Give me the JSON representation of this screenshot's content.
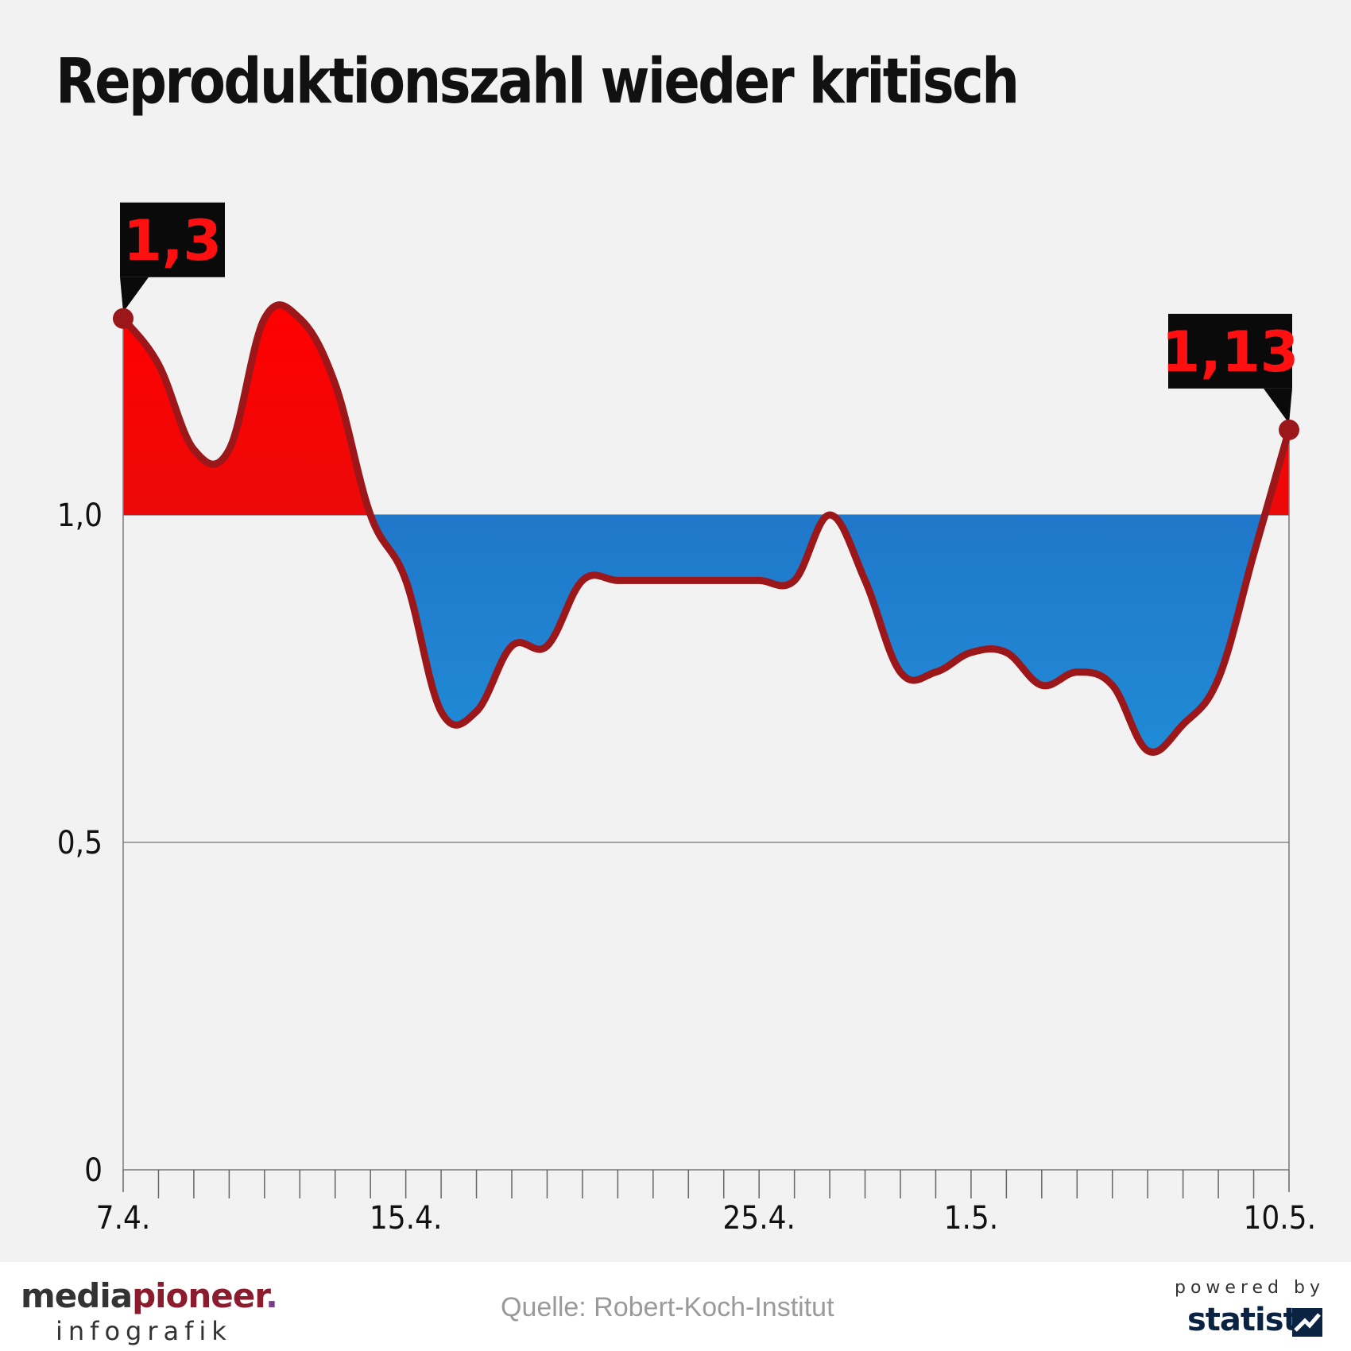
{
  "chart_data": {
    "type": "area",
    "title": "Reproduktionszahl wieder kritisch",
    "baseline": 1.0,
    "ylim": [
      0,
      1.5
    ],
    "yticks": [
      0,
      0.5,
      1.0
    ],
    "ytick_labels": [
      "0",
      "0,5",
      "1,0"
    ],
    "x_tick_labels": [
      {
        "date": "7.4.",
        "label": "7.4."
      },
      {
        "date": "15.4.",
        "label": "15.4."
      },
      {
        "date": "25.4.",
        "label": "25.4."
      },
      {
        "date": "1.5.",
        "label": "1.5."
      },
      {
        "date": "10.5.",
        "label": "10.5."
      }
    ],
    "x": [
      "7.4.",
      "8.4.",
      "9.4.",
      "10.4.",
      "11.4.",
      "12.4.",
      "13.4.",
      "14.4.",
      "15.4.",
      "16.4.",
      "17.4.",
      "18.4.",
      "19.4.",
      "20.4.",
      "21.4.",
      "22.4.",
      "23.4.",
      "24.4.",
      "25.4.",
      "26.4.",
      "27.4.",
      "28.4.",
      "29.4.",
      "30.4.",
      "1.5.",
      "2.5.",
      "3.5.",
      "4.5.",
      "5.5.",
      "6.5.",
      "7.5.",
      "8.5.",
      "9.5.",
      "10.5."
    ],
    "values": [
      1.3,
      1.23,
      1.1,
      1.1,
      1.3,
      1.3,
      1.2,
      1.0,
      0.9,
      0.7,
      0.7,
      0.8,
      0.8,
      0.9,
      0.9,
      0.9,
      0.9,
      0.9,
      0.9,
      0.9,
      1.0,
      0.9,
      0.76,
      0.76,
      0.79,
      0.79,
      0.74,
      0.76,
      0.74,
      0.64,
      0.68,
      0.75,
      0.94,
      1.13
    ],
    "callouts": [
      {
        "date": "7.4.",
        "label": "1,3"
      },
      {
        "date": "10.5.",
        "label": "1,13"
      }
    ],
    "colors": {
      "above": "#ff0000",
      "above_dark": "#d81414",
      "below": "#1f8bd6",
      "below_dark": "#2266be",
      "line": "#9c1719",
      "callout_bg": "#0a0a0a",
      "callout_text": "#ff1010"
    }
  },
  "footer": {
    "brand_part1": "media",
    "brand_part2": "pioneer",
    "brand_dot": ".",
    "brand_sub": "infografik",
    "source": "Quelle: Robert-Koch-Institut",
    "powered_by": "powered by",
    "statista": "statista"
  }
}
